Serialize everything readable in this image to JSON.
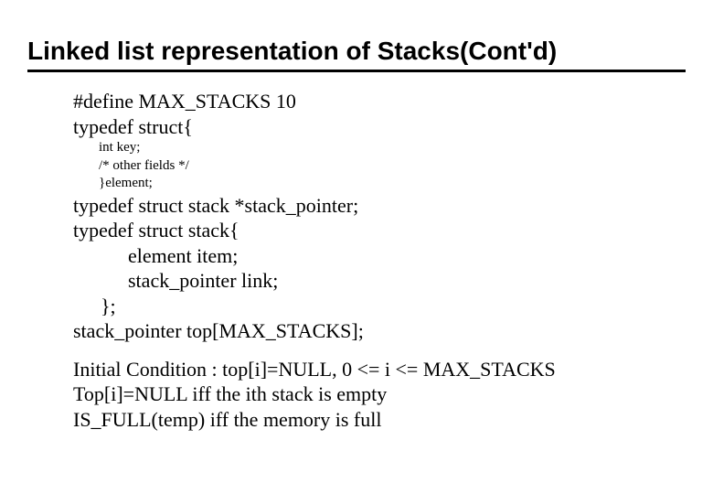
{
  "title": "Linked list representation of Stacks(Cont'd)",
  "code": {
    "l1": "#define MAX_STACKS  10",
    "l2": "typedef struct{",
    "s1": "int key;",
    "s2": "/* other fields */",
    "s3": "}element;",
    "l5": "typedef struct stack *stack_pointer;",
    "l6": "typedef struct stack{",
    "l7": "element  item;",
    "l8": "stack_pointer link;",
    "l9": "};",
    "l10": "stack_pointer   top[MAX_STACKS];"
  },
  "notes": {
    "n1": "Initial Condition : top[i]=NULL, 0 <= i <= MAX_STACKS",
    "n2": "Top[i]=NULL iff the ith stack is empty",
    "n3": "IS_FULL(temp) iff the memory is full"
  },
  "styling": {
    "background_color": "#ffffff",
    "text_color": "#000000",
    "title_font": "Arial",
    "title_fontsize": 28,
    "title_weight": "bold",
    "body_font": "Times New Roman",
    "body_fontsize": 22,
    "small_fontsize": 15,
    "underline_color": "#000000",
    "underline_width": 3,
    "slide_width": 780,
    "slide_height": 540
  }
}
